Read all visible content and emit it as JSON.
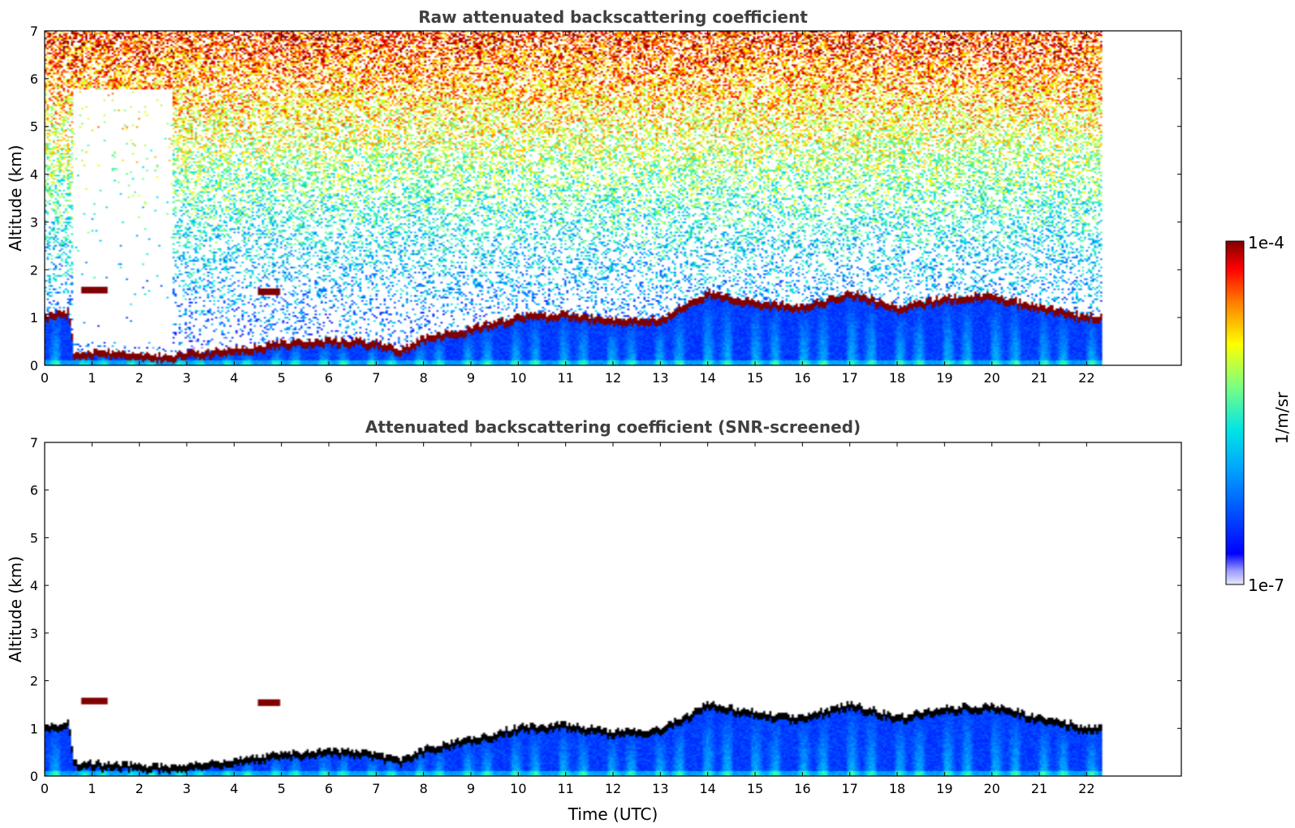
{
  "figure": {
    "colorbar": {
      "label": "1/m/sr",
      "max_label": "1e-4",
      "min_label": "1e-7",
      "scale": "log",
      "range": [
        1e-07,
        0.0001
      ],
      "colormap": "jet"
    }
  },
  "chart_data": [
    {
      "type": "heatmap",
      "title": "Raw attenuated backscattering coefficient",
      "xlabel": "",
      "ylabel": "Altitude (km)",
      "xlim": [
        0,
        24
      ],
      "ylim": [
        0,
        7
      ],
      "xticks": [
        "0",
        "1",
        "2",
        "3",
        "4",
        "5",
        "6",
        "7",
        "8",
        "9",
        "10",
        "11",
        "12",
        "13",
        "14",
        "15",
        "16",
        "17",
        "18",
        "19",
        "20",
        "21",
        "22"
      ],
      "yticks": [
        "0",
        "1",
        "2",
        "3",
        "4",
        "5",
        "6",
        "7"
      ],
      "data_extent_time": [
        0,
        22.3
      ],
      "grid": false,
      "screened": false,
      "cloud_layer_altitude_km": [
        [
          0,
          1.0
        ],
        [
          0.5,
          1.1
        ],
        [
          0.6,
          0.25
        ],
        [
          1.5,
          0.22
        ],
        [
          2.5,
          0.15
        ],
        [
          3.0,
          0.22
        ],
        [
          4.0,
          0.3
        ],
        [
          5.0,
          0.45
        ],
        [
          6.0,
          0.5
        ],
        [
          7.0,
          0.45
        ],
        [
          7.5,
          0.3
        ],
        [
          8.0,
          0.55
        ],
        [
          9.0,
          0.75
        ],
        [
          10.0,
          1.0
        ],
        [
          11.0,
          1.05
        ],
        [
          12.0,
          0.9
        ],
        [
          13.0,
          0.95
        ],
        [
          14.0,
          1.5
        ],
        [
          15.0,
          1.3
        ],
        [
          16.0,
          1.2
        ],
        [
          17.0,
          1.5
        ],
        [
          18.0,
          1.2
        ],
        [
          19.0,
          1.4
        ],
        [
          20.0,
          1.45
        ],
        [
          21.0,
          1.2
        ],
        [
          22.0,
          1.0
        ]
      ],
      "elevated_layers": [
        {
          "time": [
            0.75,
            1.3
          ],
          "altitude_km": 1.6
        },
        {
          "time": [
            4.5,
            4.95
          ],
          "altitude_km": 1.57
        }
      ]
    },
    {
      "type": "heatmap",
      "title": "Attenuated backscattering coefficient (SNR-screened)",
      "xlabel": "Time (UTC)",
      "ylabel": "Altitude (km)",
      "xlim": [
        0,
        24
      ],
      "ylim": [
        0,
        7
      ],
      "xticks": [
        "0",
        "1",
        "2",
        "3",
        "4",
        "5",
        "6",
        "7",
        "8",
        "9",
        "10",
        "11",
        "12",
        "13",
        "14",
        "15",
        "16",
        "17",
        "18",
        "19",
        "20",
        "21",
        "22"
      ],
      "yticks": [
        "0",
        "1",
        "2",
        "3",
        "4",
        "5",
        "6",
        "7"
      ],
      "data_extent_time": [
        0,
        22.3
      ],
      "grid": false,
      "screened": true,
      "cloud_layer_altitude_km": [
        [
          0,
          1.0
        ],
        [
          0.5,
          1.1
        ],
        [
          0.6,
          0.25
        ],
        [
          1.5,
          0.22
        ],
        [
          2.5,
          0.15
        ],
        [
          3.0,
          0.22
        ],
        [
          4.0,
          0.3
        ],
        [
          5.0,
          0.45
        ],
        [
          6.0,
          0.5
        ],
        [
          7.0,
          0.45
        ],
        [
          7.5,
          0.3
        ],
        [
          8.0,
          0.55
        ],
        [
          9.0,
          0.75
        ],
        [
          10.0,
          1.0
        ],
        [
          11.0,
          1.05
        ],
        [
          12.0,
          0.9
        ],
        [
          13.0,
          0.95
        ],
        [
          14.0,
          1.5
        ],
        [
          15.0,
          1.3
        ],
        [
          16.0,
          1.2
        ],
        [
          17.0,
          1.5
        ],
        [
          18.0,
          1.2
        ],
        [
          19.0,
          1.4
        ],
        [
          20.0,
          1.45
        ],
        [
          21.0,
          1.2
        ],
        [
          22.0,
          1.0
        ]
      ],
      "elevated_layers": [
        {
          "time": [
            0.75,
            1.3
          ],
          "altitude_km": 1.6
        },
        {
          "time": [
            4.5,
            4.95
          ],
          "altitude_km": 1.57
        }
      ]
    }
  ]
}
